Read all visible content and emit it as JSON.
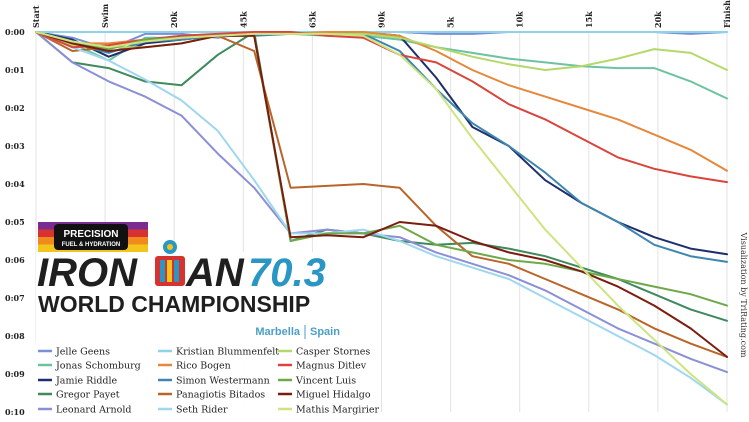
{
  "chart_data": {
    "type": "line",
    "title": "",
    "xlabel": "",
    "ylabel": "",
    "x_ticks": [
      "Start",
      "Swim",
      "20k",
      "45k",
      "65k",
      "90k",
      "5k",
      "10k",
      "15k",
      "20k",
      "Finish"
    ],
    "y_ticks": [
      "0:00",
      "0:01",
      "0:02",
      "0:03",
      "0:04",
      "0:05",
      "0:06",
      "0:07",
      "0:08",
      "0:09",
      "0:10"
    ],
    "ylim": [
      0,
      10
    ],
    "y_unit": "hours:minutes",
    "grid": true,
    "y_reversed": true,
    "legend_position": "bottom-left",
    "credit": "Visualization by TriRating.com",
    "series": [
      {
        "name": "Jelle Geens",
        "color": "#7b8fd4",
        "values": [
          0,
          0.15,
          0.45,
          0.05,
          0.05,
          0.15,
          0.0,
          0.0,
          0.0,
          0.0,
          0.0,
          0.05,
          0.05,
          0.0,
          0.0,
          0.0,
          0.0,
          0.0,
          0.05,
          0.0
        ]
      },
      {
        "name": "Jonas Schomburg",
        "color": "#6dc3a0",
        "values": [
          0,
          0.3,
          0.75,
          0.15,
          0.15,
          0.1,
          0.05,
          0.05,
          0.1,
          0.1,
          0.2,
          0.4,
          0.55,
          0.7,
          0.8,
          0.9,
          0.95,
          0.95,
          1.3,
          1.75
        ]
      },
      {
        "name": "Jamie Riddle",
        "color": "#1e2f6b",
        "values": [
          0,
          0.2,
          0.65,
          0.3,
          0.2,
          0.1,
          0.0,
          0.0,
          0.0,
          0.0,
          0.1,
          1.2,
          2.5,
          3.0,
          3.9,
          4.5,
          5.0,
          5.4,
          5.7,
          5.85
        ]
      },
      {
        "name": "Gregor Payet",
        "color": "#3f8a5c",
        "values": [
          0,
          0.8,
          0.95,
          1.3,
          1.4,
          0.6,
          0.0,
          5.5,
          5.2,
          5.3,
          5.5,
          5.6,
          5.55,
          5.7,
          5.9,
          6.2,
          6.5,
          6.9,
          7.3,
          7.6
        ]
      },
      {
        "name": "Leonard Arnold",
        "color": "#8a8fd6",
        "values": [
          0,
          0.8,
          1.3,
          1.7,
          2.2,
          3.2,
          4.1,
          5.3,
          5.2,
          5.3,
          5.4,
          5.8,
          6.1,
          6.4,
          6.8,
          7.3,
          7.8,
          8.2,
          8.6,
          8.95
        ]
      },
      {
        "name": "Kristian Blummenfelt",
        "color": "#8dd3ea",
        "values": [
          0,
          0.0,
          0.0,
          0.0,
          0.0,
          0.0,
          0.0,
          0.0,
          0.0,
          0.0,
          0.0,
          0.0,
          0.0,
          0.0,
          0.0,
          0.0,
          0.0,
          0.0,
          0.0,
          0.0
        ]
      },
      {
        "name": "Rico Bogen",
        "color": "#e5883c",
        "values": [
          0,
          0.3,
          0.3,
          0.2,
          0.15,
          0.1,
          0.05,
          0.05,
          0.0,
          0.0,
          0.1,
          0.5,
          1.0,
          1.4,
          1.7,
          2.0,
          2.3,
          2.7,
          3.1,
          3.65
        ]
      },
      {
        "name": "Simon Westermann",
        "color": "#3e86b0",
        "values": [
          0,
          0.3,
          0.55,
          0.25,
          0.2,
          0.1,
          0.1,
          0.05,
          0.05,
          0.05,
          0.5,
          1.5,
          2.4,
          3.0,
          3.7,
          4.5,
          5.0,
          5.6,
          5.9,
          6.05
        ]
      },
      {
        "name": "Panagiotis Bitados",
        "color": "#b9652a",
        "values": [
          0,
          0.5,
          0.4,
          0.25,
          0.15,
          0.1,
          0.5,
          4.1,
          4.05,
          4.0,
          4.1,
          5.1,
          5.9,
          6.1,
          6.5,
          6.9,
          7.3,
          7.8,
          8.2,
          8.55
        ]
      },
      {
        "name": "Seth Rider",
        "color": "#9ed7ee",
        "values": [
          0,
          0.4,
          0.75,
          1.25,
          1.8,
          2.6,
          3.9,
          5.3,
          5.3,
          5.2,
          5.5,
          5.9,
          6.2,
          6.5,
          7.0,
          7.5,
          8.0,
          8.5,
          9.1,
          9.8
        ]
      },
      {
        "name": "Casper Stornes",
        "color": "#b5d86a",
        "values": [
          0,
          0.35,
          0.4,
          0.4,
          0.3,
          0.1,
          0.05,
          0.05,
          0.05,
          0.05,
          0.15,
          0.4,
          0.65,
          0.85,
          1.0,
          0.9,
          0.7,
          0.45,
          0.55,
          1.0
        ]
      },
      {
        "name": "Magnus Ditlev",
        "color": "#d9453c",
        "values": [
          0,
          0.4,
          0.35,
          0.2,
          0.1,
          0.05,
          0.0,
          0.0,
          0.1,
          0.15,
          0.6,
          0.8,
          1.3,
          1.9,
          2.3,
          2.8,
          3.3,
          3.6,
          3.8,
          3.95
        ]
      },
      {
        "name": "Vincent Luis",
        "color": "#6fa84a",
        "values": [
          0,
          0.25,
          0.45,
          0.2,
          0.15,
          0.1,
          0.1,
          5.5,
          5.3,
          5.3,
          5.1,
          5.6,
          5.8,
          6.0,
          6.1,
          6.3,
          6.5,
          6.7,
          6.9,
          7.2
        ]
      },
      {
        "name": "Miguel Hidalgo",
        "color": "#7a1d0e",
        "values": [
          0,
          0.3,
          0.5,
          0.4,
          0.3,
          0.1,
          0.1,
          5.4,
          5.35,
          5.4,
          5.0,
          5.1,
          5.5,
          5.8,
          6.0,
          6.3,
          6.7,
          7.2,
          7.8,
          8.55
        ]
      },
      {
        "name": "Mathis Margirier",
        "color": "#cde480",
        "values": [
          0,
          0.25,
          0.4,
          0.25,
          0.15,
          0.1,
          0.05,
          0.05,
          0.05,
          0.1,
          0.6,
          1.5,
          2.8,
          4.0,
          5.2,
          6.2,
          7.2,
          8.1,
          9.0,
          9.8
        ]
      }
    ]
  },
  "logo": {
    "sponsor_title": "PRECISION",
    "sponsor_sub": "FUEL & HYDRATION",
    "brand_left": "IRON",
    "brand_right": "AN",
    "brand_num": "70.3",
    "event": "WORLD CHAMPIONSHIP",
    "location_city": "Marbella",
    "location_country": "Spain",
    "stripe_colors": [
      "#7a2b8f",
      "#d6322f",
      "#f08a1d",
      "#f3c51c"
    ]
  }
}
